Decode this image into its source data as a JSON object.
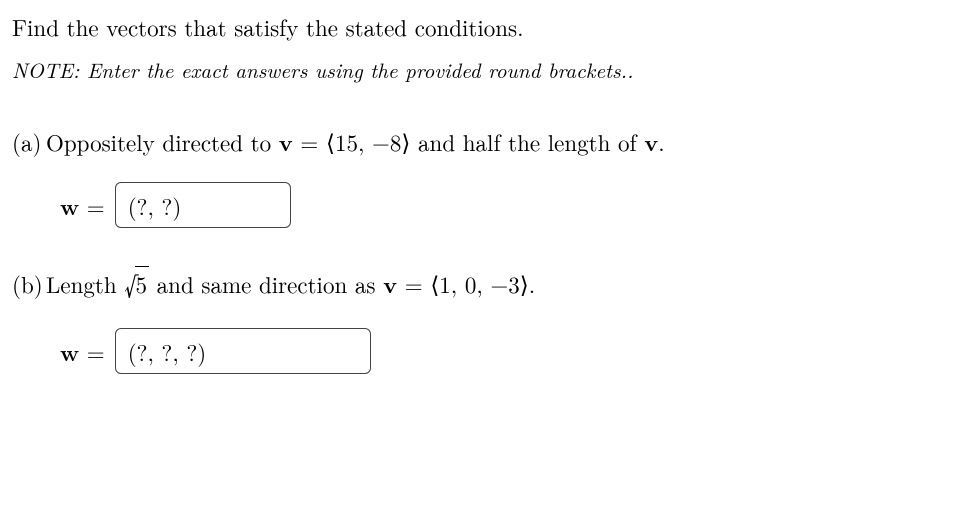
{
  "instruction": "Find the vectors that satisfy the stated conditions.",
  "note": "NOTE: Enter the exact answers using the provided round brackets..",
  "parts": {
    "a": {
      "label": "(a)",
      "text_before_v": "Oppositely directed to ",
      "v_label": "v",
      "eq": " = ",
      "vector_open": "⟨",
      "vector_values": "15, −8",
      "vector_close": "⟩",
      "text_after": " and half the length of ",
      "v_label2": "v",
      "period": ".",
      "answer_lhs_w": "w",
      "answer_lhs_eq": " = ",
      "placeholder": "(?, ?)"
    },
    "b": {
      "label": "(b)",
      "text_before_sqrt": "Length ",
      "sqrt_radicand": "5",
      "text_mid": " and same direction as ",
      "v_label": "v",
      "eq": " = ",
      "vector_open": "⟨",
      "vector_values": "1, 0, −3",
      "vector_close": "⟩",
      "period": ".",
      "answer_lhs_w": "w",
      "answer_lhs_eq": " = ",
      "placeholder": "(?, ?, ?)"
    }
  }
}
